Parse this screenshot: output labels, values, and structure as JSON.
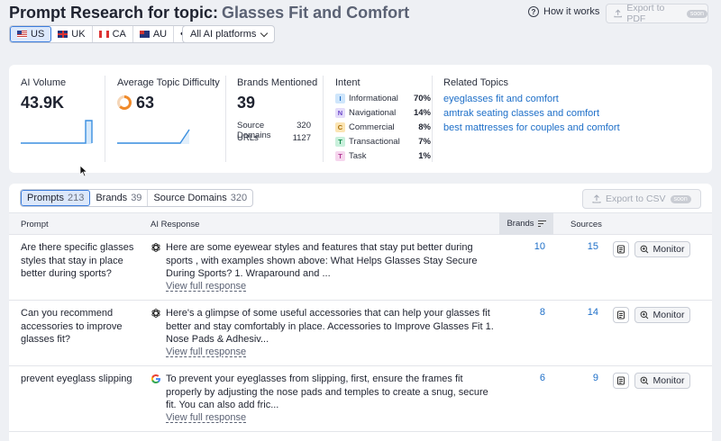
{
  "header": {
    "title_prefix": "Prompt Research for topic:",
    "topic": "Glasses Fit and Comfort",
    "how_it_works": "How it works",
    "export_pdf": "Export to PDF",
    "soon": "soon"
  },
  "countries": [
    {
      "code": "US",
      "active": true
    },
    {
      "code": "UK",
      "active": false
    },
    {
      "code": "CA",
      "active": false
    },
    {
      "code": "AU",
      "active": false
    }
  ],
  "more": "•••",
  "platform": "All AI platforms",
  "metrics": {
    "ai_volume": {
      "label": "AI Volume",
      "value": "43.9K"
    },
    "difficulty": {
      "label": "Average Topic Difficulty",
      "value": "63"
    },
    "brands": {
      "label": "Brands Mentioned",
      "value": "39",
      "source_domains_label": "Source Domains",
      "source_domains": "320",
      "urls_label": "URLs",
      "urls": "1127"
    },
    "intent": {
      "label": "Intent",
      "items": [
        {
          "letter": "I",
          "name": "Informational",
          "pct": "70%",
          "bg": "#cfe6fb",
          "fg": "#1e6fc8"
        },
        {
          "letter": "N",
          "name": "Navigational",
          "pct": "14%",
          "bg": "#e4dcfa",
          "fg": "#6a46c9"
        },
        {
          "letter": "C",
          "name": "Commercial",
          "pct": "8%",
          "bg": "#fbe5b4",
          "fg": "#a86a00"
        },
        {
          "letter": "T",
          "name": "Transactional",
          "pct": "7%",
          "bg": "#c9f0dc",
          "fg": "#138a4a"
        },
        {
          "letter": "T",
          "name": "Task",
          "pct": "1%",
          "bg": "#f6d6ee",
          "fg": "#b03a93"
        }
      ]
    },
    "related": {
      "label": "Related Topics",
      "links": [
        "eyeglasses fit and comfort",
        "amtrak seating classes and comfort",
        "best mattresses for couples and comfort"
      ]
    }
  },
  "tabs": [
    {
      "label": "Prompts",
      "count": "213",
      "active": true
    },
    {
      "label": "Brands",
      "count": "39",
      "active": false
    },
    {
      "label": "Source Domains",
      "count": "320",
      "active": false
    }
  ],
  "export_csv": "Export to CSV",
  "table": {
    "headers": {
      "prompt": "Prompt",
      "response": "AI Response",
      "brands": "Brands",
      "sources": "Sources"
    },
    "view_full": "View full response",
    "monitor": "Monitor",
    "rows": [
      {
        "prompt": "Are there specific glasses styles that stay in place better during sports?",
        "source_icon": "openai-icon",
        "response": "Here are some eyewear styles and features that stay put better during sports , with examples shown above: What Helps Glasses Stay Secure During Sports? 1. Wraparound and ...",
        "brands": "10",
        "sources": "15"
      },
      {
        "prompt": "Can you recommend accessories to improve glasses fit?",
        "source_icon": "openai-icon",
        "response": "Here's a glimpse of some useful accessories that can help your glasses fit better and stay comfortably in place. Accessories to Improve Glasses Fit 1. Nose Pads & Adhesiv...",
        "brands": "8",
        "sources": "14"
      },
      {
        "prompt": "prevent eyeglass slipping",
        "source_icon": "google-icon",
        "response": "To prevent your eyeglasses from slipping, first, ensure the frames fit properly by adjusting the nose pads and temples to create a snug, secure fit. You can also add fric...",
        "brands": "6",
        "sources": "9"
      }
    ]
  }
}
